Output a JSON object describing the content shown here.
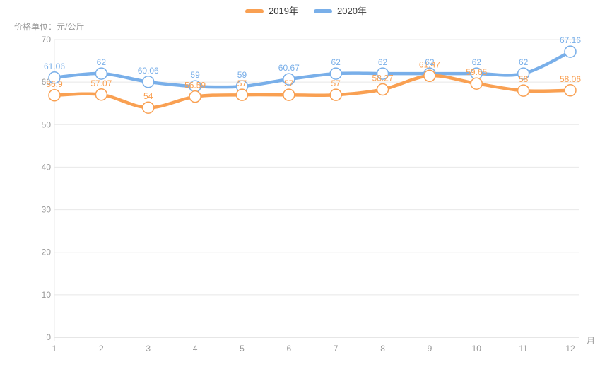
{
  "chart_data": {
    "type": "line",
    "title": "",
    "ylabel": "价格单位：元/公斤",
    "xlabel": "月",
    "x": [
      "1",
      "2",
      "3",
      "4",
      "5",
      "6",
      "7",
      "8",
      "9",
      "10",
      "11",
      "12"
    ],
    "yticks": [
      0,
      10,
      20,
      30,
      40,
      50,
      60,
      70
    ],
    "ylim": [
      0,
      70
    ],
    "grid": true,
    "smooth": true,
    "legend_position": "top-center",
    "point_style": "hollow-circle",
    "series": [
      {
        "name": "2019年",
        "color": "#F9A052",
        "values": [
          56.9,
          57.07,
          54,
          56.59,
          57,
          57,
          57,
          58.27,
          61.47,
          59.65,
          58,
          58.06
        ]
      },
      {
        "name": "2020年",
        "color": "#79AFE9",
        "values": [
          61.06,
          62,
          60.06,
          59,
          59,
          60.67,
          62,
          62,
          62,
          62,
          62,
          67.16
        ]
      }
    ],
    "colors": {
      "grid_line": "#E8E8E8",
      "axis_line": "#CCCCCC",
      "tick_text": "#999999",
      "legend_text": "#3C3C3C",
      "background": "#FFFFFF"
    }
  }
}
